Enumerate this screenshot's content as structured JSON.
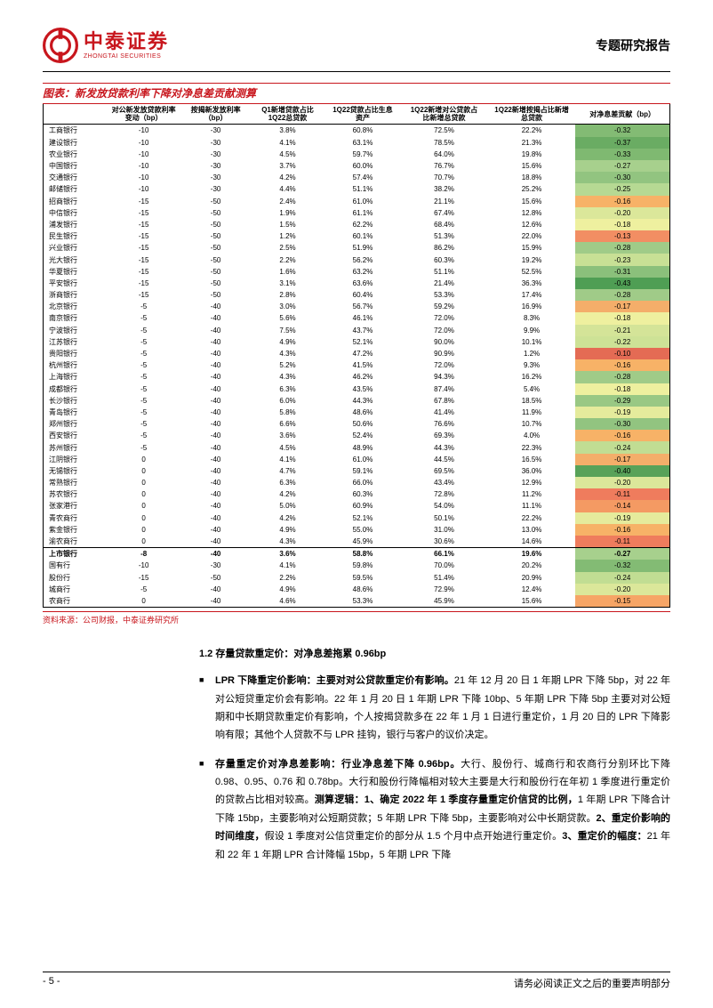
{
  "header": {
    "logo_cn": "中泰证券",
    "logo_en": "ZHONGTAI SECURITIES",
    "report_type": "专题研究报告"
  },
  "chart": {
    "title": "图表：新发放贷款利率下降对净息差贡献测算",
    "source": "资料来源：公司财报，中泰证券研究所",
    "columns": [
      "",
      "对公新发放贷款利率\n变动（bp）",
      "按揭新发放利率\n（bp）",
      "Q1新增贷款占比\n1Q22总贷款",
      "1Q22贷款占比生息\n资产",
      "1Q22新增对公贷款占\n比新增总贷款",
      "1Q22新增按揭占比新增\n总贷款",
      "对净息差贡献（bp）"
    ],
    "col_widths": [
      "10%",
      "12%",
      "11%",
      "12%",
      "12%",
      "14%",
      "14%",
      "15%"
    ],
    "heat_palette": {
      "min_color": "#5fa858",
      "mid_color": "#fee08b",
      "max_color": "#e46b54"
    },
    "rows": [
      {
        "n": "工商银行",
        "v": [
          "-10",
          "-30",
          "3.8%",
          "60.8%",
          "72.5%",
          "22.2%",
          "-0.32"
        ],
        "c": "#83bb74"
      },
      {
        "n": "建设银行",
        "v": [
          "-10",
          "-30",
          "4.1%",
          "63.1%",
          "78.5%",
          "21.3%",
          "-0.37"
        ],
        "c": "#6aac63"
      },
      {
        "n": "农业银行",
        "v": [
          "-10",
          "-30",
          "4.5%",
          "59.7%",
          "64.0%",
          "19.8%",
          "-0.33"
        ],
        "c": "#7fb971"
      },
      {
        "n": "中国银行",
        "v": [
          "-10",
          "-30",
          "3.7%",
          "60.0%",
          "76.7%",
          "15.6%",
          "-0.27"
        ],
        "c": "#a7d08d"
      },
      {
        "n": "交通银行",
        "v": [
          "-10",
          "-30",
          "4.2%",
          "57.4%",
          "70.7%",
          "18.8%",
          "-0.30"
        ],
        "c": "#92c480"
      },
      {
        "n": "邮储银行",
        "v": [
          "-10",
          "-30",
          "4.4%",
          "51.1%",
          "38.2%",
          "25.2%",
          "-0.25"
        ],
        "c": "#b6d993"
      },
      {
        "n": "招商银行",
        "v": [
          "-15",
          "-50",
          "2.4%",
          "61.0%",
          "21.1%",
          "15.6%",
          "-0.16"
        ],
        "c": "#f7b267"
      },
      {
        "n": "中信银行",
        "v": [
          "-15",
          "-50",
          "1.9%",
          "61.1%",
          "67.4%",
          "12.8%",
          "-0.20"
        ],
        "c": "#dbe79a"
      },
      {
        "n": "浦发银行",
        "v": [
          "-15",
          "-50",
          "1.5%",
          "62.2%",
          "68.4%",
          "12.6%",
          "-0.18"
        ],
        "c": "#eef09f"
      },
      {
        "n": "民生银行",
        "v": [
          "-15",
          "-50",
          "1.2%",
          "60.1%",
          "51.3%",
          "22.0%",
          "-0.13"
        ],
        "c": "#f28e63"
      },
      {
        "n": "兴业银行",
        "v": [
          "-15",
          "-50",
          "2.5%",
          "51.9%",
          "86.2%",
          "15.9%",
          "-0.28"
        ],
        "c": "#a0cb88"
      },
      {
        "n": "光大银行",
        "v": [
          "-15",
          "-50",
          "2.2%",
          "56.2%",
          "60.3%",
          "19.2%",
          "-0.23"
        ],
        "c": "#c8e095"
      },
      {
        "n": "华夏银行",
        "v": [
          "-15",
          "-50",
          "1.6%",
          "63.2%",
          "51.1%",
          "52.5%",
          "-0.31"
        ],
        "c": "#8bc07b"
      },
      {
        "n": "平安银行",
        "v": [
          "-15",
          "-50",
          "3.1%",
          "63.6%",
          "21.4%",
          "36.3%",
          "-0.43"
        ],
        "c": "#4f9e54"
      },
      {
        "n": "浙商银行",
        "v": [
          "-15",
          "-50",
          "2.8%",
          "60.4%",
          "53.3%",
          "17.4%",
          "-0.28"
        ],
        "c": "#a0cb88"
      },
      {
        "n": "北京银行",
        "v": [
          "-5",
          "-40",
          "3.0%",
          "56.7%",
          "59.2%",
          "16.9%",
          "-0.17"
        ],
        "c": "#f4ae6a"
      },
      {
        "n": "南京银行",
        "v": [
          "-5",
          "-40",
          "5.6%",
          "46.1%",
          "72.0%",
          "8.3%",
          "-0.18"
        ],
        "c": "#eef09f"
      },
      {
        "n": "宁波银行",
        "v": [
          "-5",
          "-40",
          "7.5%",
          "43.7%",
          "72.0%",
          "9.9%",
          "-0.21"
        ],
        "c": "#d4e498"
      },
      {
        "n": "江苏银行",
        "v": [
          "-5",
          "-40",
          "4.9%",
          "52.1%",
          "90.0%",
          "10.1%",
          "-0.22"
        ],
        "c": "#cde296"
      },
      {
        "n": "贵阳银行",
        "v": [
          "-5",
          "-40",
          "4.3%",
          "47.2%",
          "90.9%",
          "1.2%",
          "-0.10"
        ],
        "c": "#e46b54"
      },
      {
        "n": "杭州银行",
        "v": [
          "-5",
          "-40",
          "5.2%",
          "41.5%",
          "72.0%",
          "9.3%",
          "-0.16"
        ],
        "c": "#f7b267"
      },
      {
        "n": "上海银行",
        "v": [
          "-5",
          "-40",
          "4.3%",
          "46.2%",
          "94.3%",
          "16.2%",
          "-0.28"
        ],
        "c": "#a0cb88"
      },
      {
        "n": "成都银行",
        "v": [
          "-5",
          "-40",
          "6.3%",
          "43.5%",
          "87.4%",
          "5.4%",
          "-0.18"
        ],
        "c": "#eef09f"
      },
      {
        "n": "长沙银行",
        "v": [
          "-5",
          "-40",
          "6.0%",
          "44.3%",
          "67.8%",
          "18.5%",
          "-0.29"
        ],
        "c": "#99c884"
      },
      {
        "n": "青岛银行",
        "v": [
          "-5",
          "-40",
          "5.8%",
          "48.6%",
          "41.4%",
          "11.9%",
          "-0.19"
        ],
        "c": "#e5eb9c"
      },
      {
        "n": "郑州银行",
        "v": [
          "-5",
          "-40",
          "6.6%",
          "50.6%",
          "76.6%",
          "10.7%",
          "-0.30"
        ],
        "c": "#92c480"
      },
      {
        "n": "西安银行",
        "v": [
          "-5",
          "-40",
          "3.6%",
          "52.4%",
          "69.3%",
          "4.0%",
          "-0.16"
        ],
        "c": "#f7b267"
      },
      {
        "n": "苏州银行",
        "v": [
          "-5",
          "-40",
          "4.5%",
          "48.9%",
          "44.3%",
          "22.3%",
          "-0.24"
        ],
        "c": "#c1dd93"
      },
      {
        "n": "江阴银行",
        "v": [
          "0",
          "-40",
          "4.1%",
          "61.0%",
          "44.5%",
          "16.5%",
          "-0.17"
        ],
        "c": "#f4ae6a"
      },
      {
        "n": "无锡银行",
        "v": [
          "0",
          "-40",
          "4.7%",
          "59.1%",
          "69.5%",
          "36.0%",
          "-0.40"
        ],
        "c": "#58a259"
      },
      {
        "n": "常熟银行",
        "v": [
          "0",
          "-40",
          "6.3%",
          "66.0%",
          "43.4%",
          "12.9%",
          "-0.20"
        ],
        "c": "#dbe79a"
      },
      {
        "n": "苏农银行",
        "v": [
          "0",
          "-40",
          "4.2%",
          "60.3%",
          "72.8%",
          "11.2%",
          "-0.11"
        ],
        "c": "#ef7c5d"
      },
      {
        "n": "张家港行",
        "v": [
          "0",
          "-40",
          "5.0%",
          "60.9%",
          "54.0%",
          "11.1%",
          "-0.14"
        ],
        "c": "#f49a63"
      },
      {
        "n": "青农商行",
        "v": [
          "0",
          "-40",
          "4.2%",
          "52.1%",
          "50.1%",
          "22.2%",
          "-0.19"
        ],
        "c": "#e5eb9c"
      },
      {
        "n": "紫金银行",
        "v": [
          "0",
          "-40",
          "4.9%",
          "55.0%",
          "31.0%",
          "13.0%",
          "-0.16"
        ],
        "c": "#f7b267"
      },
      {
        "n": "渝农商行",
        "v": [
          "0",
          "-40",
          "4.3%",
          "45.9%",
          "30.6%",
          "14.6%",
          "-0.11"
        ],
        "c": "#ef7c5d"
      }
    ],
    "summary_rows": [
      {
        "n": "上市银行",
        "v": [
          "-8",
          "-40",
          "3.6%",
          "58.8%",
          "66.1%",
          "19.6%",
          "-0.27"
        ],
        "c": "#a7d08d"
      },
      {
        "n": "国有行",
        "v": [
          "-10",
          "-30",
          "4.1%",
          "59.8%",
          "70.0%",
          "20.2%",
          "-0.32"
        ],
        "c": "#83bb74"
      },
      {
        "n": "股份行",
        "v": [
          "-15",
          "-50",
          "2.2%",
          "59.5%",
          "51.4%",
          "20.9%",
          "-0.24"
        ],
        "c": "#c1dd93"
      },
      {
        "n": "城商行",
        "v": [
          "-5",
          "-40",
          "4.9%",
          "48.6%",
          "72.9%",
          "12.4%",
          "-0.20"
        ],
        "c": "#dbe79a"
      },
      {
        "n": "农商行",
        "v": [
          "0",
          "-40",
          "4.6%",
          "53.3%",
          "45.9%",
          "15.6%",
          "-0.15"
        ],
        "c": "#f6a566"
      }
    ]
  },
  "body": {
    "section_num": "1.2 存量贷款重定价：对净息差拖累 0.96bp",
    "para1_lead": "LPR 下降重定价影响：主要对对公贷款重定价有影响。",
    "para1_rest": "21 年 12 月 20 日 1 年期 LPR 下降 5bp，对 22 年对公短贷重定价会有影响。22 年 1 月 20 日 1 年期 LPR 下降 10bp、5 年期 LPR 下降 5bp 主要对对公短期和中长期贷款重定价有影响，个人按揭贷款多在 22 年 1 月 1 日进行重定价，1 月 20 日的 LPR 下降影响有限；其他个人贷款不与 LPR 挂钩，银行与客户的议价决定。",
    "para2_lead": "存量重定价对净息差影响：行业净息差下降 0.96bp。",
    "para2_mid1": "大行、股份行、城商行和农商行分别环比下降 0.98、0.95、0.76 和 0.78bp。",
    "para2_mid2": "大行和股份行降幅相对较大主要是大行和股份行在年初 1 季度进行重定价的贷款占比相对较高。",
    "para2_logic_label": "测算逻辑：1、确定 2022 年 1 季度存量重定价信贷的比例，",
    "para2_logic1": "1 年期 LPR 下降合计下降 15bp，主要影响对公短期贷款；5 年期 LPR 下降 5bp，主要影响对公中长期贷款。",
    "para2_logic2_label": "2、重定价影响的时间维度，",
    "para2_logic2": "假设 1 季度对公信贷重定价的部分从 1.5 个月中点开始进行重定价。",
    "para2_logic3_label": "3、重定价的幅度：",
    "para2_logic3": "21 年和 22 年 1 年期 LPR 合计降幅 15bp，5 年期 LPR 下降"
  },
  "footer": {
    "page_num": "- 5 -",
    "disclaimer": "请务必阅读正文之后的重要声明部分"
  }
}
